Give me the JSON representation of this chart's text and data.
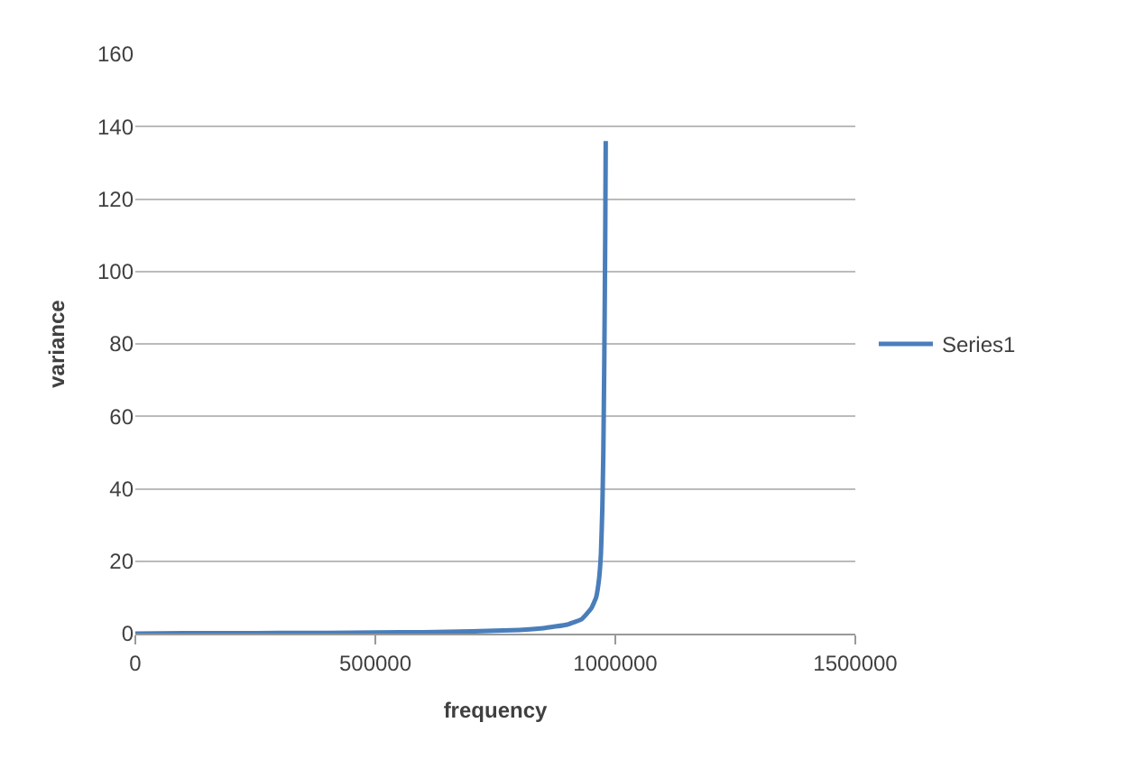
{
  "chart_data": {
    "type": "line",
    "xlabel": "frequency",
    "ylabel": "variance",
    "x": [
      0,
      100000,
      200000,
      300000,
      400000,
      500000,
      600000,
      700000,
      800000,
      850000,
      900000,
      930000,
      950000,
      960000,
      966000,
      970000,
      973000,
      975000,
      977000,
      979000,
      980000
    ],
    "series": [
      {
        "name": "Series1",
        "color": "#4a7ebb",
        "values": [
          0,
          0.1,
          0.1,
          0.2,
          0.2,
          0.3,
          0.4,
          0.6,
          1,
          1.5,
          2.5,
          4,
          7,
          10,
          15,
          22,
          35,
          50,
          75,
          110,
          136
        ]
      }
    ],
    "xlim": [
      0,
      1500000
    ],
    "xticks": [
      0,
      500000,
      1000000,
      1500000
    ],
    "ylim": [
      0,
      160
    ],
    "yticks": [
      0,
      20,
      40,
      60,
      80,
      100,
      120,
      140,
      160
    ],
    "grid": "y",
    "legend": "right",
    "marker": "none",
    "line_style": "solid"
  }
}
